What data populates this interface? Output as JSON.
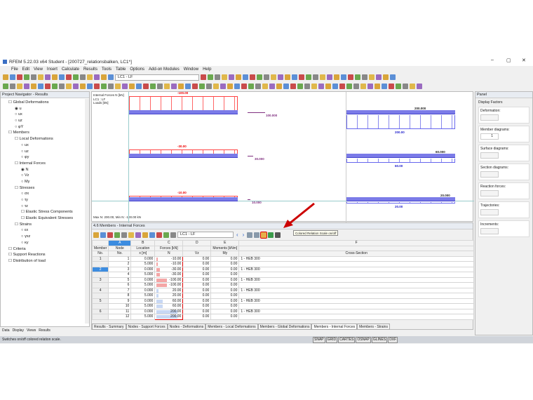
{
  "window": {
    "title": "RFEM 5.22.03 x64 Student - [200727_relationsbalken, LC1*]"
  },
  "menu": [
    "File",
    "Edit",
    "View",
    "Insert",
    "Calculate",
    "Results",
    "Tools",
    "Table",
    "Options",
    "Add-on Modules",
    "Window",
    "Help"
  ],
  "toolbar": {
    "loadcase": "LC1 - LF"
  },
  "navigator": {
    "title": "Project Navigator - Results",
    "items": [
      {
        "label": "Global Deformations",
        "level": 0
      },
      {
        "label": "u",
        "level": 1,
        "radio": true,
        "on": true
      },
      {
        "label": "ux",
        "level": 1,
        "radio": true
      },
      {
        "label": "uz",
        "level": 1,
        "radio": true
      },
      {
        "label": "φY",
        "level": 1,
        "radio": true
      },
      {
        "label": "Members",
        "level": 0
      },
      {
        "label": "Local Deformations",
        "level": 1
      },
      {
        "label": "ux",
        "level": 2,
        "radio": true
      },
      {
        "label": "uz",
        "level": 2,
        "radio": true
      },
      {
        "label": "φy",
        "level": 2,
        "radio": true
      },
      {
        "label": "Internal Forces",
        "level": 1
      },
      {
        "label": "N",
        "level": 2,
        "radio": true,
        "on": true
      },
      {
        "label": "Vz",
        "level": 2,
        "radio": true
      },
      {
        "label": "My",
        "level": 2,
        "radio": true
      },
      {
        "label": "Stresses",
        "level": 1
      },
      {
        "label": "σx",
        "level": 2,
        "radio": true
      },
      {
        "label": "τy",
        "level": 2,
        "radio": true
      },
      {
        "label": "τz",
        "level": 2,
        "radio": true
      },
      {
        "label": "Elastic Stress Components",
        "level": 2
      },
      {
        "label": "Elastic Equivalent Stresses",
        "level": 2
      },
      {
        "label": "Strains",
        "level": 1
      },
      {
        "label": "εx",
        "level": 2,
        "radio": true
      },
      {
        "label": "γxz",
        "level": 2,
        "radio": true
      },
      {
        "label": "κy",
        "level": 2,
        "radio": true
      },
      {
        "label": "Criteria",
        "level": 0
      },
      {
        "label": "Support Reactions",
        "level": 0
      },
      {
        "label": "Distribution of load",
        "level": 0
      }
    ],
    "tabs": [
      "Data",
      "Display",
      "Views",
      "Results"
    ]
  },
  "graphics": {
    "info": [
      "Internal Forces N [kN]",
      "LC1 : LF",
      "Loads [kN]"
    ],
    "footer": "Max N: 200.00, Min N: -100.00 kN",
    "left_beams": [
      {
        "value": "-100.00",
        "load": "100.000"
      },
      {
        "value": "-30.00",
        "load": "30.000"
      },
      {
        "value": "-10.00",
        "load": "10.000"
      }
    ],
    "right_beams": [
      {
        "value": "200.00",
        "load": "200.000"
      },
      {
        "value": "60.00",
        "load": "60.000"
      },
      {
        "value": "20.00",
        "load": "20.000"
      }
    ]
  },
  "table": {
    "title": "4.6 Members - Internal Forces",
    "loadcase": "LC1 - LF",
    "tooltip": "Colored Relation Scale on/off",
    "cols": [
      "A",
      "B",
      "C",
      "D",
      "E",
      "F"
    ],
    "h1": [
      "Member",
      "Node",
      "Location",
      "Forces [kN]",
      "",
      "Moments [kNm]",
      ""
    ],
    "h2": [
      "No.",
      "No.",
      "x [m]",
      "N",
      "Vz",
      "My",
      "Cross-Section"
    ],
    "rows": [
      [
        "1",
        "1",
        "0.000",
        "-10.00",
        "0.00",
        "0.00",
        "1 - HEB 300"
      ],
      [
        "",
        "2",
        "5.000",
        "-10.00",
        "0.00",
        "0.00",
        ""
      ],
      [
        "2",
        "3",
        "0.000",
        "-30.00",
        "0.00",
        "0.00",
        "1 - HEB 300"
      ],
      [
        "",
        "4",
        "5.000",
        "-30.00",
        "0.00",
        "0.00",
        ""
      ],
      [
        "3",
        "5",
        "0.000",
        "-100.00",
        "0.00",
        "0.00",
        "1 - HEB 300"
      ],
      [
        "",
        "6",
        "5.000",
        "-100.00",
        "0.00",
        "0.00",
        ""
      ],
      [
        "4",
        "7",
        "0.000",
        "20.00",
        "0.00",
        "0.00",
        "1 - HEB 300"
      ],
      [
        "",
        "8",
        "5.000",
        "20.00",
        "0.00",
        "0.00",
        ""
      ],
      [
        "5",
        "9",
        "0.000",
        "60.00",
        "0.00",
        "0.00",
        "1 - HEB 300"
      ],
      [
        "",
        "10",
        "5.000",
        "60.00",
        "0.00",
        "0.00",
        ""
      ],
      [
        "6",
        "11",
        "0.000",
        "200.00",
        "0.00",
        "0.00",
        "1 - HEB 300"
      ],
      [
        "",
        "12",
        "5.000",
        "200.00",
        "0.00",
        "0.00",
        ""
      ]
    ],
    "tabs": [
      "Results - Summary",
      "Nodes - Support Forces",
      "Nodes - Deformations",
      "Members - Local Deformations",
      "Members - Global Deformations",
      "Members - Internal Forces",
      "Members - Strains"
    ],
    "active_tab": "Members - Internal Forces"
  },
  "panel": {
    "title": "Panel",
    "section": "Display Factors",
    "groups": [
      {
        "label": "Deformation:",
        "value": ""
      },
      {
        "label": "Member diagrams:",
        "value": "1"
      },
      {
        "label": "Surface diagrams:",
        "value": ""
      },
      {
        "label": "Section diagrams:",
        "value": ""
      },
      {
        "label": "Reaction forces:",
        "value": ""
      },
      {
        "label": "Trajectories:",
        "value": ""
      },
      {
        "label": "Increments:",
        "value": ""
      }
    ]
  },
  "status": {
    "text": "Switches on/off colored relation scale.",
    "keys": [
      "SNAP",
      "GRID",
      "CARTES",
      "OSNAP",
      "GLINES",
      "DXF"
    ]
  },
  "colors": {
    "negative": "#f4a6a6",
    "positive": "#c8d8f4",
    "beam": "#7b7be8",
    "highlight": "#d00000"
  }
}
